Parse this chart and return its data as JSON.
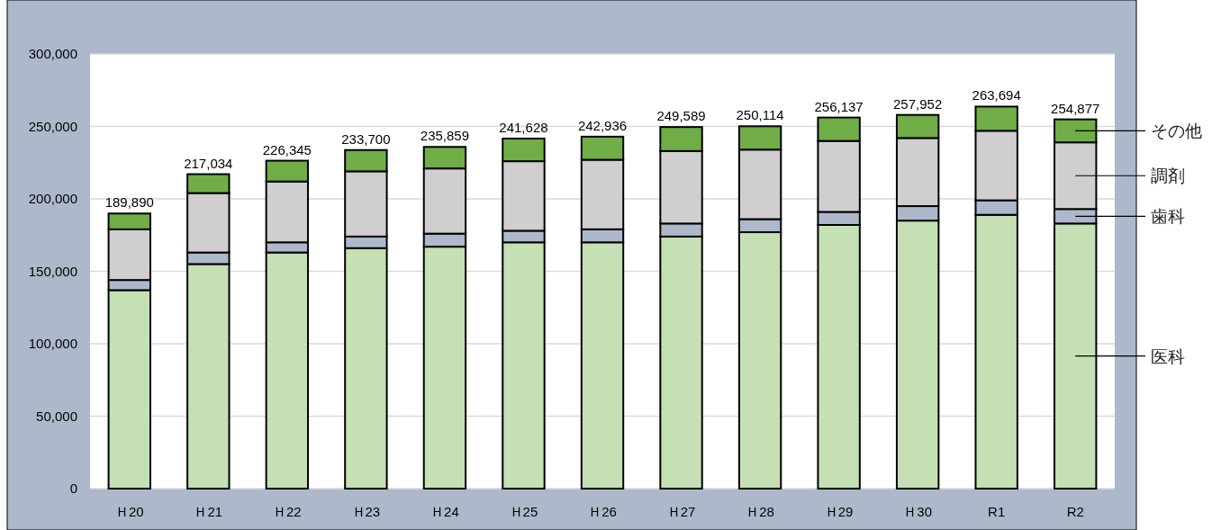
{
  "chart_data": {
    "type": "bar",
    "stacked": true,
    "categories": [
      "Ｈ20",
      "Ｈ21",
      "Ｈ22",
      "Ｈ23",
      "Ｈ24",
      "Ｈ25",
      "Ｈ26",
      "Ｈ27",
      "Ｈ28",
      "Ｈ29",
      "Ｈ30",
      "R1",
      "R2"
    ],
    "series": [
      {
        "name": "医科",
        "color": "#c5e0b4",
        "values": [
          137000,
          155000,
          163000,
          166000,
          167000,
          170000,
          170000,
          174000,
          177000,
          182000,
          185000,
          189000,
          183000
        ]
      },
      {
        "name": "歯科",
        "color": "#adb9ca",
        "values": [
          7000,
          8000,
          7000,
          8000,
          9000,
          8000,
          9000,
          9000,
          9000,
          9000,
          10000,
          10000,
          10000
        ]
      },
      {
        "name": "調剤",
        "color": "#d0cece",
        "values": [
          35000,
          41000,
          42000,
          45000,
          45000,
          48000,
          48000,
          50000,
          48000,
          49000,
          47000,
          48000,
          46000
        ]
      },
      {
        "name": "その他",
        "color": "#70ad47",
        "values": [
          10890,
          13034,
          14345,
          14700,
          14859,
          15628,
          15936,
          16589,
          16114,
          16137,
          15952,
          16694,
          15877
        ]
      }
    ],
    "legend": "right",
    "totals": [
      "189,890",
      "217,034",
      "226,345",
      "233,700",
      "235,859",
      "241,628",
      "242,936",
      "249,589",
      "250,114",
      "256,137",
      "257,952",
      "263,694",
      "254,877"
    ],
    "ylim": [
      0,
      300000
    ],
    "yticks": [
      0,
      {
        "value": 50000,
        "label": "50,000"
      },
      {
        "value": 100000,
        "label": "100,000"
      },
      {
        "value": 150000,
        "label": "150,000"
      },
      {
        "value": 200000,
        "label": "200,000"
      },
      {
        "value": 250000,
        "label": "250,000"
      },
      {
        "value": 300000,
        "label": "300,000"
      }
    ],
    "grid": "y"
  }
}
